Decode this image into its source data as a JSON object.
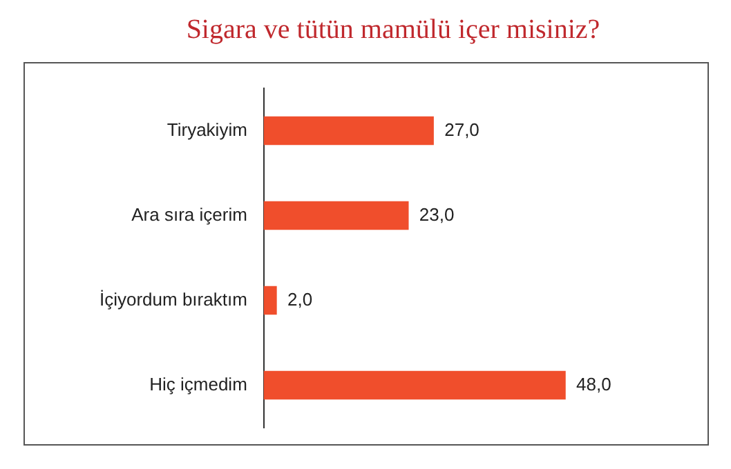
{
  "chart_data": {
    "type": "bar",
    "orientation": "horizontal",
    "title": "Sigara ve tütün mamülü içer misiniz?",
    "categories": [
      "Tiryakiyim",
      "Ara sıra içerim",
      "İçiyordum bıraktım",
      "Hiç içmedim"
    ],
    "values": [
      27,
      23,
      2,
      48
    ],
    "value_labels": [
      "27,0",
      "23,0",
      "2,0",
      "48,0"
    ],
    "color": "#f04e2c"
  }
}
